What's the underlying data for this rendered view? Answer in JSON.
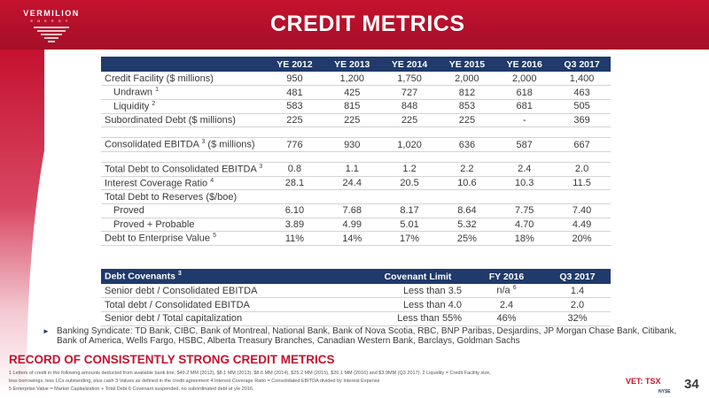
{
  "header": {
    "logo_name": "VERMILION",
    "logo_sub": "ENERGY",
    "title": "CREDIT METRICS"
  },
  "metrics": {
    "columns": [
      "",
      "YE 2012",
      "YE 2013",
      "YE 2014",
      "YE 2015",
      "YE 2016",
      "Q3 2017"
    ],
    "rows": [
      {
        "label": "Credit Facility ($ millions)",
        "values": [
          "950",
          "1,200",
          "1,750",
          "2,000",
          "2,000",
          "1,400"
        ]
      },
      {
        "label": "Undrawn",
        "sup": "1",
        "values": [
          "481",
          "425",
          "727",
          "812",
          "618",
          "463"
        ]
      },
      {
        "label": "Liquidity",
        "sup": "2",
        "values": [
          "583",
          "815",
          "848",
          "853",
          "681",
          "505"
        ]
      },
      {
        "label": "Subordinated Debt ($ millions)",
        "values": [
          "225",
          "225",
          "225",
          "225",
          "-",
          "369"
        ]
      },
      {
        "label": "Consolidated EBITDA",
        "sup": "3",
        "label_suffix": " ($ millions)",
        "values": [
          "776",
          "930",
          "1,020",
          "636",
          "587",
          "667"
        ]
      },
      {
        "label": "Total Debt to Consolidated EBITDA",
        "sup": "3",
        "values": [
          "0.8",
          "1.1",
          "1.2",
          "2.2",
          "2.4",
          "2.0"
        ]
      },
      {
        "label": "Interest Coverage Ratio",
        "sup": "4",
        "values": [
          "28.1",
          "24.4",
          "20.5",
          "10.6",
          "10.3",
          "11.5"
        ]
      },
      {
        "label": "Total Debt to Reserves ($/boe)"
      },
      {
        "label": "Proved",
        "values": [
          "6.10",
          "7.68",
          "8.17",
          "8.64",
          "7.75",
          "7.40"
        ]
      },
      {
        "label": "Proved + Probable",
        "values": [
          "3.89",
          "4.99",
          "5.01",
          "5.32",
          "4.70",
          "4.49"
        ]
      },
      {
        "label": "Debt to Enterprise Value",
        "sup": "5",
        "values": [
          "11%",
          "14%",
          "17%",
          "25%",
          "18%",
          "20%"
        ]
      }
    ]
  },
  "covenants": {
    "columns": [
      "Debt Covenants",
      "Covenant Limit",
      "FY 2016",
      "Q3 2017"
    ],
    "header_sup": "3",
    "rows": [
      {
        "label": "Senior debt / Consolidated EBITDA",
        "limit": "Less than 3.5",
        "fy2016": "n/a",
        "fy2016_sup": "6",
        "q32017": "1.4"
      },
      {
        "label": "Total debt / Consolidated EBITDA",
        "limit": "Less than 4.0",
        "fy2016": "2.4",
        "q32017": "2.0"
      },
      {
        "label": "Senior debt / Total capitalization",
        "limit": "Less than 55%",
        "fy2016": "46%",
        "q32017": "32%"
      }
    ]
  },
  "bullet": "Banking Syndicate: TD Bank, CIBC, Bank of Montreal, National Bank, Bank of Nova Scotia, RBC, BNP Paribas, Desjardins, JP Morgan Chase Bank, Citibank, Bank of America, Wells Fargo, HSBC, Alberta Treasury Branches, Canadian Western Bank, Barclays, Goldman Sachs",
  "record": "RECORD OF CONSISTENTLY STRONG CREDIT METRICS",
  "footnotes": [
    "1 Letters of credit in the following amounts deducted from available bank line; $49.2 MM (2012), $8.1 MM (2013), $8.6 MM (2014), $25.2 MM (2015), $20.1 MM (2016) and $3.9MM (Q3 2017).   2 Liquidity = Credit Facility size,",
    "less borrowings, less LCs outstanding, plus cash 3 Values as defined in the credit agreement  4 Interest Coverage Ratio = Consolidated EBITDA divided by Interest Expense",
    "5  Enterprise Value = Market Capitalization + Total Debt  6 Covenant suspended, no subordinated debt at y/e 2016."
  ],
  "listing": {
    "vet": "VET",
    "tsx": "TSX",
    "nyse": "NYSE"
  },
  "page_number": "34",
  "colors": {
    "brand_red": "#c4122f",
    "header_navy": "#1f3a6b"
  }
}
